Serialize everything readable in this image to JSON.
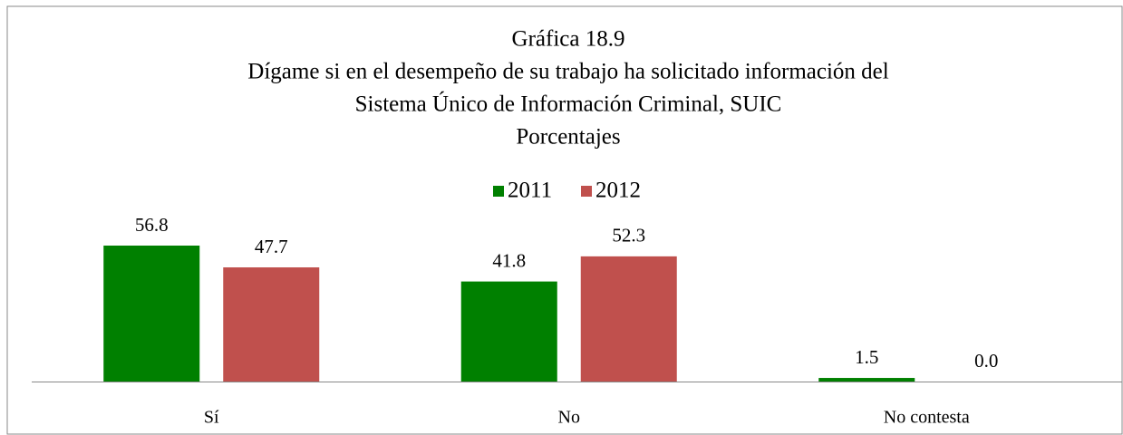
{
  "chart_data": {
    "type": "bar",
    "title_lines": [
      "Gráfica 18.9",
      "Dígame si en el desempeño de su trabajo ha solicitado información del",
      "Sistema Único de Información Criminal, SUIC",
      "Porcentajes"
    ],
    "categories": [
      "Sí",
      "No",
      "No contesta"
    ],
    "series": [
      {
        "name": "2011",
        "color": "#008000",
        "values": [
          56.8,
          41.8,
          1.5
        ]
      },
      {
        "name": "2012",
        "color": "#c0504d",
        "values": [
          47.7,
          52.3,
          0
        ],
        "value_labels": [
          "47.7",
          "52.3",
          "0.0"
        ]
      }
    ],
    "legend": "top"
  }
}
